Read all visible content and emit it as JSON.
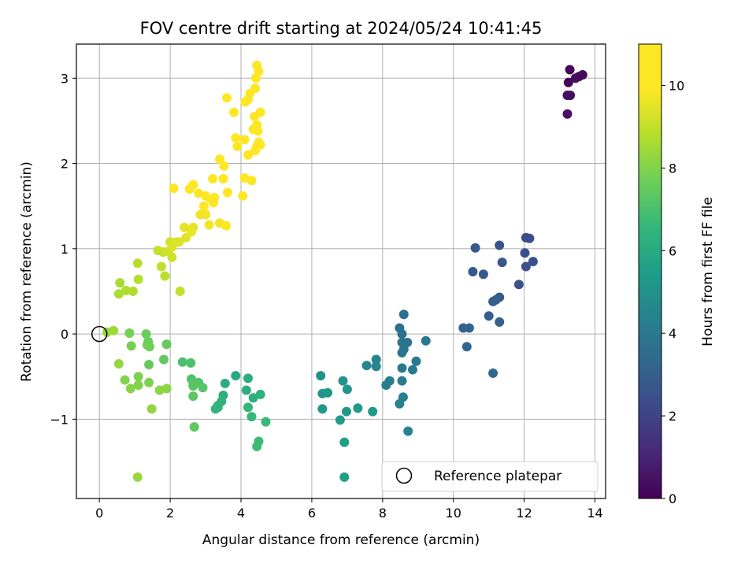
{
  "chart_data": {
    "type": "scatter",
    "title": "FOV centre drift starting at 2024/05/24 10:41:45",
    "xlabel": "Angular distance from reference (arcmin)",
    "ylabel": "Rotation from reference (arcmin)",
    "xlim": [
      -0.65,
      14.3
    ],
    "ylim": [
      -1.93,
      3.4
    ],
    "xticks": [
      0,
      2,
      4,
      6,
      8,
      10,
      12,
      14
    ],
    "yticks": [
      -1,
      0,
      1,
      2,
      3
    ],
    "ytick_labels": [
      "−1",
      "0",
      "1",
      "2",
      "3"
    ],
    "grid": true,
    "colormap": "viridis",
    "colorbar": {
      "label": "Hours from first FF file",
      "range": [
        0,
        11
      ],
      "ticks": [
        0,
        2,
        4,
        6,
        8,
        10
      ]
    },
    "legend": {
      "position": "bottom-right",
      "entries": [
        {
          "label": "Reference platepar",
          "marker": "open-circle",
          "color": "#000000"
        }
      ]
    },
    "reference_point": {
      "x": 0,
      "y": 0
    },
    "series": [
      {
        "points": [
          {
            "x": 13.29,
            "y": 3.1,
            "c": 0.1
          },
          {
            "x": 13.25,
            "y": 2.95,
            "c": 0.15
          },
          {
            "x": 13.55,
            "y": 3.02,
            "c": 0.2
          },
          {
            "x": 13.65,
            "y": 3.04,
            "c": 0.25
          },
          {
            "x": 13.45,
            "y": 3.0,
            "c": 0.3
          },
          {
            "x": 13.3,
            "y": 2.8,
            "c": 0.35
          },
          {
            "x": 13.22,
            "y": 2.8,
            "c": 0.4
          },
          {
            "x": 13.22,
            "y": 2.58,
            "c": 0.45
          },
          {
            "x": 12.05,
            "y": 1.13,
            "c": 2.3
          },
          {
            "x": 12.15,
            "y": 1.12,
            "c": 2.35
          },
          {
            "x": 12.25,
            "y": 0.85,
            "c": 2.4
          },
          {
            "x": 12.02,
            "y": 0.95,
            "c": 2.45
          },
          {
            "x": 12.05,
            "y": 0.79,
            "c": 2.5
          },
          {
            "x": 11.85,
            "y": 0.58,
            "c": 2.55
          },
          {
            "x": 11.3,
            "y": 1.04,
            "c": 2.6
          },
          {
            "x": 11.38,
            "y": 0.84,
            "c": 2.65
          },
          {
            "x": 10.62,
            "y": 1.01,
            "c": 2.7
          },
          {
            "x": 10.55,
            "y": 0.73,
            "c": 2.75
          },
          {
            "x": 10.85,
            "y": 0.7,
            "c": 2.8
          },
          {
            "x": 11.3,
            "y": 0.43,
            "c": 2.85
          },
          {
            "x": 11.12,
            "y": 0.38,
            "c": 2.9
          },
          {
            "x": 11.2,
            "y": 0.4,
            "c": 2.95
          },
          {
            "x": 11.0,
            "y": 0.21,
            "c": 3.0
          },
          {
            "x": 11.3,
            "y": 0.14,
            "c": 3.05
          },
          {
            "x": 10.28,
            "y": 0.07,
            "c": 3.1
          },
          {
            "x": 10.45,
            "y": 0.07,
            "c": 3.15
          },
          {
            "x": 10.38,
            "y": -0.15,
            "c": 3.2
          },
          {
            "x": 11.12,
            "y": -0.46,
            "c": 3.25
          },
          {
            "x": 8.6,
            "y": 0.23,
            "c": 3.6
          },
          {
            "x": 8.48,
            "y": 0.07,
            "c": 3.65
          },
          {
            "x": 8.55,
            "y": 0.0,
            "c": 3.7
          },
          {
            "x": 8.55,
            "y": -0.1,
            "c": 3.75
          },
          {
            "x": 8.7,
            "y": -0.1,
            "c": 3.8
          },
          {
            "x": 8.6,
            "y": -0.18,
            "c": 3.85
          },
          {
            "x": 8.55,
            "y": -0.22,
            "c": 3.9
          },
          {
            "x": 9.22,
            "y": -0.08,
            "c": 3.95
          },
          {
            "x": 8.95,
            "y": -0.32,
            "c": 4.0
          },
          {
            "x": 8.55,
            "y": -0.4,
            "c": 4.05
          },
          {
            "x": 8.85,
            "y": -0.42,
            "c": 4.1
          },
          {
            "x": 8.55,
            "y": -0.55,
            "c": 4.15
          },
          {
            "x": 8.2,
            "y": -0.55,
            "c": 4.2
          },
          {
            "x": 8.1,
            "y": -0.6,
            "c": 4.25
          },
          {
            "x": 8.58,
            "y": -0.74,
            "c": 4.3
          },
          {
            "x": 8.48,
            "y": -0.82,
            "c": 4.35
          },
          {
            "x": 8.72,
            "y": -1.14,
            "c": 4.4
          },
          {
            "x": 7.82,
            "y": -0.3,
            "c": 4.5
          },
          {
            "x": 7.82,
            "y": -0.38,
            "c": 4.55
          },
          {
            "x": 7.55,
            "y": -0.37,
            "c": 4.6
          },
          {
            "x": 6.25,
            "y": -0.49,
            "c": 5.0
          },
          {
            "x": 6.88,
            "y": -0.55,
            "c": 5.05
          },
          {
            "x": 7.0,
            "y": -0.65,
            "c": 5.1
          },
          {
            "x": 6.3,
            "y": -0.7,
            "c": 5.15
          },
          {
            "x": 6.45,
            "y": -0.69,
            "c": 5.2
          },
          {
            "x": 6.3,
            "y": -0.88,
            "c": 5.25
          },
          {
            "x": 6.98,
            "y": -0.91,
            "c": 5.3
          },
          {
            "x": 7.3,
            "y": -0.87,
            "c": 5.35
          },
          {
            "x": 7.72,
            "y": -0.91,
            "c": 5.4
          },
          {
            "x": 6.8,
            "y": -1.01,
            "c": 5.45
          },
          {
            "x": 6.92,
            "y": -1.27,
            "c": 5.5
          },
          {
            "x": 6.92,
            "y": -1.68,
            "c": 5.55
          },
          {
            "x": 3.85,
            "y": -0.49,
            "c": 6.0
          },
          {
            "x": 4.2,
            "y": -0.52,
            "c": 6.05
          },
          {
            "x": 3.55,
            "y": -0.58,
            "c": 6.1
          },
          {
            "x": 4.15,
            "y": -0.66,
            "c": 6.15
          },
          {
            "x": 3.5,
            "y": -0.72,
            "c": 6.2
          },
          {
            "x": 4.35,
            "y": -0.75,
            "c": 6.25
          },
          {
            "x": 4.55,
            "y": -0.71,
            "c": 6.3
          },
          {
            "x": 3.45,
            "y": -0.79,
            "c": 6.35
          },
          {
            "x": 3.35,
            "y": -0.84,
            "c": 6.4
          },
          {
            "x": 3.28,
            "y": -0.88,
            "c": 6.45
          },
          {
            "x": 3.35,
            "y": -0.86,
            "c": 6.5
          },
          {
            "x": 4.2,
            "y": -0.86,
            "c": 6.55
          },
          {
            "x": 4.3,
            "y": -0.97,
            "c": 6.6
          },
          {
            "x": 4.7,
            "y": -1.03,
            "c": 6.65
          },
          {
            "x": 4.5,
            "y": -1.26,
            "c": 6.7
          },
          {
            "x": 4.45,
            "y": -1.32,
            "c": 6.75
          },
          {
            "x": 2.35,
            "y": -0.33,
            "c": 7.0
          },
          {
            "x": 2.58,
            "y": -0.34,
            "c": 7.05
          },
          {
            "x": 2.6,
            "y": -0.53,
            "c": 7.1
          },
          {
            "x": 2.65,
            "y": -0.57,
            "c": 7.15
          },
          {
            "x": 2.8,
            "y": -0.57,
            "c": 7.2
          },
          {
            "x": 2.92,
            "y": -0.63,
            "c": 7.25
          },
          {
            "x": 2.65,
            "y": -0.61,
            "c": 7.3
          },
          {
            "x": 2.65,
            "y": -0.73,
            "c": 7.35
          },
          {
            "x": 2.68,
            "y": -1.09,
            "c": 7.4
          },
          {
            "x": 1.82,
            "y": -0.3,
            "c": 7.45
          },
          {
            "x": 1.4,
            "y": -0.36,
            "c": 7.5
          },
          {
            "x": 1.9,
            "y": -0.12,
            "c": 7.55
          },
          {
            "x": 1.32,
            "y": 0.0,
            "c": 7.6
          },
          {
            "x": 1.38,
            "y": -0.09,
            "c": 7.65
          },
          {
            "x": 1.35,
            "y": -0.13,
            "c": 7.7
          },
          {
            "x": 1.42,
            "y": -0.15,
            "c": 7.75
          },
          {
            "x": 0.9,
            "y": -0.14,
            "c": 7.8
          },
          {
            "x": 0.85,
            "y": 0.01,
            "c": 7.85
          },
          {
            "x": 1.1,
            "y": -0.5,
            "c": 7.9
          },
          {
            "x": 1.4,
            "y": -0.57,
            "c": 7.95
          },
          {
            "x": 1.1,
            "y": -0.6,
            "c": 8.0
          },
          {
            "x": 0.72,
            "y": -0.54,
            "c": 8.05
          },
          {
            "x": 0.88,
            "y": -0.64,
            "c": 8.1
          },
          {
            "x": 1.7,
            "y": -0.66,
            "c": 8.15
          },
          {
            "x": 1.9,
            "y": -0.64,
            "c": 8.2
          },
          {
            "x": 1.48,
            "y": -0.88,
            "c": 8.25
          },
          {
            "x": 0.55,
            "y": -0.35,
            "c": 8.3
          },
          {
            "x": 1.08,
            "y": -1.68,
            "c": 8.35
          },
          {
            "x": 0.22,
            "y": 0.02,
            "c": 8.4
          },
          {
            "x": 0.4,
            "y": 0.04,
            "c": 8.45
          },
          {
            "x": 0.58,
            "y": 0.6,
            "c": 8.6
          },
          {
            "x": 0.55,
            "y": 0.47,
            "c": 8.65
          },
          {
            "x": 0.75,
            "y": 0.51,
            "c": 8.7
          },
          {
            "x": 0.95,
            "y": 0.5,
            "c": 8.75
          },
          {
            "x": 1.1,
            "y": 0.64,
            "c": 8.8
          },
          {
            "x": 1.08,
            "y": 0.83,
            "c": 8.85
          },
          {
            "x": 1.85,
            "y": 0.68,
            "c": 8.9
          },
          {
            "x": 1.75,
            "y": 0.79,
            "c": 8.95
          },
          {
            "x": 2.28,
            "y": 0.5,
            "c": 9.0
          },
          {
            "x": 1.65,
            "y": 0.98,
            "c": 9.05
          },
          {
            "x": 1.8,
            "y": 0.96,
            "c": 9.1
          },
          {
            "x": 2.05,
            "y": 0.9,
            "c": 9.15
          },
          {
            "x": 1.95,
            "y": 0.97,
            "c": 9.2
          },
          {
            "x": 2.0,
            "y": 1.08,
            "c": 9.25
          },
          {
            "x": 2.18,
            "y": 1.08,
            "c": 9.3
          },
          {
            "x": 2.05,
            "y": 1.02,
            "c": 9.35
          },
          {
            "x": 2.25,
            "y": 1.08,
            "c": 9.4
          },
          {
            "x": 2.45,
            "y": 1.13,
            "c": 9.45
          },
          {
            "x": 2.4,
            "y": 1.25,
            "c": 9.5
          },
          {
            "x": 2.65,
            "y": 1.25,
            "c": 9.55
          },
          {
            "x": 2.6,
            "y": 1.2,
            "c": 9.6
          },
          {
            "x": 2.85,
            "y": 1.4,
            "c": 9.65
          },
          {
            "x": 3.0,
            "y": 1.4,
            "c": 9.7
          },
          {
            "x": 3.1,
            "y": 1.28,
            "c": 9.75
          },
          {
            "x": 3.4,
            "y": 1.3,
            "c": 9.8
          },
          {
            "x": 3.58,
            "y": 1.27,
            "c": 9.85
          },
          {
            "x": 2.95,
            "y": 1.5,
            "c": 9.9
          },
          {
            "x": 3.22,
            "y": 1.54,
            "c": 9.95
          },
          {
            "x": 3.0,
            "y": 1.62,
            "c": 10.0
          },
          {
            "x": 3.15,
            "y": 1.58,
            "c": 10.05
          },
          {
            "x": 3.25,
            "y": 1.6,
            "c": 10.1
          },
          {
            "x": 2.8,
            "y": 1.65,
            "c": 10.15
          },
          {
            "x": 2.55,
            "y": 1.7,
            "c": 10.2
          },
          {
            "x": 2.65,
            "y": 1.75,
            "c": 10.25
          },
          {
            "x": 2.1,
            "y": 1.71,
            "c": 10.3
          },
          {
            "x": 3.2,
            "y": 1.82,
            "c": 10.35
          },
          {
            "x": 3.5,
            "y": 1.82,
            "c": 10.4
          },
          {
            "x": 3.62,
            "y": 1.66,
            "c": 10.45
          },
          {
            "x": 3.4,
            "y": 2.05,
            "c": 10.5
          },
          {
            "x": 3.52,
            "y": 1.97,
            "c": 10.55
          },
          {
            "x": 4.05,
            "y": 1.62,
            "c": 10.6
          },
          {
            "x": 4.1,
            "y": 1.83,
            "c": 10.65
          },
          {
            "x": 4.3,
            "y": 1.8,
            "c": 10.7
          },
          {
            "x": 3.9,
            "y": 2.2,
            "c": 10.75
          },
          {
            "x": 3.85,
            "y": 2.3,
            "c": 10.8
          },
          {
            "x": 4.2,
            "y": 2.1,
            "c": 10.82
          },
          {
            "x": 4.4,
            "y": 2.15,
            "c": 10.84
          },
          {
            "x": 4.45,
            "y": 2.2,
            "c": 10.86
          },
          {
            "x": 4.5,
            "y": 2.25,
            "c": 10.88
          },
          {
            "x": 4.1,
            "y": 2.28,
            "c": 10.9
          },
          {
            "x": 4.35,
            "y": 2.4,
            "c": 10.91
          },
          {
            "x": 4.45,
            "y": 2.45,
            "c": 10.92
          },
          {
            "x": 3.8,
            "y": 2.6,
            "c": 10.93
          },
          {
            "x": 4.55,
            "y": 2.6,
            "c": 10.94
          },
          {
            "x": 4.38,
            "y": 2.55,
            "c": 10.95
          },
          {
            "x": 4.48,
            "y": 2.38,
            "c": 10.96
          },
          {
            "x": 3.6,
            "y": 2.77,
            "c": 10.97
          },
          {
            "x": 4.12,
            "y": 2.72,
            "c": 10.975
          },
          {
            "x": 4.25,
            "y": 2.82,
            "c": 10.98
          },
          {
            "x": 4.4,
            "y": 2.88,
            "c": 10.985
          },
          {
            "x": 4.42,
            "y": 3.0,
            "c": 10.99
          },
          {
            "x": 4.5,
            "y": 3.08,
            "c": 10.995
          },
          {
            "x": 4.45,
            "y": 3.15,
            "c": 11.0
          },
          {
            "x": 4.2,
            "y": 2.75,
            "c": 10.97
          },
          {
            "x": 4.55,
            "y": 2.22,
            "c": 10.9
          }
        ]
      }
    ]
  }
}
